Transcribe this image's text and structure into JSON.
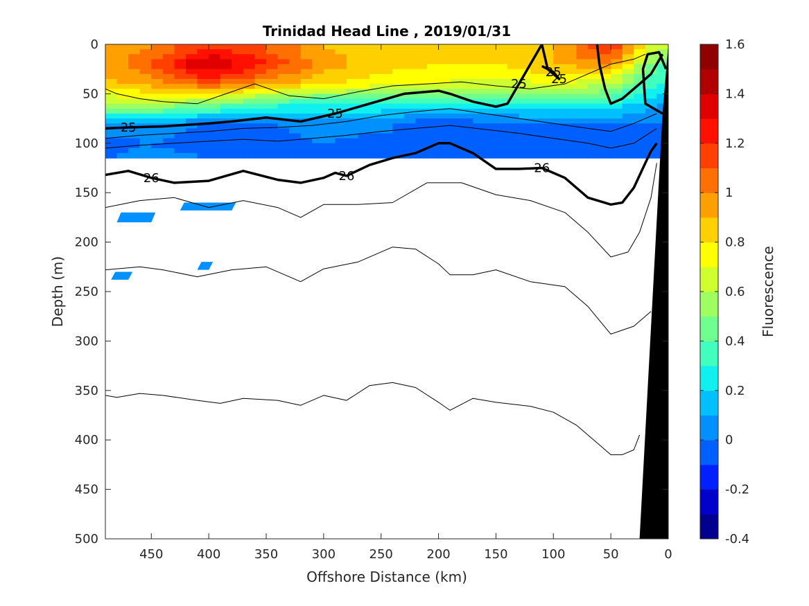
{
  "chart_data": {
    "type": "heatmap",
    "title": "Trinidad Head Line , 2019/01/31",
    "xlabel": "Offshore Distance (km)",
    "ylabel": "Depth (m)",
    "xlim": [
      490,
      0
    ],
    "ylim": [
      0,
      500
    ],
    "x_ticks": [
      "450",
      "400",
      "350",
      "300",
      "250",
      "200",
      "150",
      "100",
      "50",
      "0"
    ],
    "x_tick_values": [
      450,
      400,
      350,
      300,
      250,
      200,
      150,
      100,
      50,
      0
    ],
    "y_ticks": [
      "0",
      "50",
      "100",
      "150",
      "200",
      "250",
      "300",
      "350",
      "400",
      "450",
      "500"
    ],
    "y_tick_values": [
      0,
      50,
      100,
      150,
      200,
      250,
      300,
      350,
      400,
      450,
      500
    ],
    "colorbar": {
      "label": "Fluorescence",
      "range": [
        -0.4,
        1.6
      ],
      "ticks": [
        "1.6",
        "1.4",
        "1.2",
        "1",
        "0.8",
        "0.6",
        "0.4",
        "0.2",
        "0",
        "-0.2",
        "-0.4"
      ],
      "tick_values": [
        1.6,
        1.4,
        1.2,
        1.0,
        0.8,
        0.6,
        0.4,
        0.2,
        0.0,
        -0.2,
        -0.4
      ],
      "colors": [
        "#00008f",
        "#0000cc",
        "#0020ff",
        "#0060ff",
        "#0090ff",
        "#00c0ff",
        "#10f0ef",
        "#40ffbf",
        "#70ff8f",
        "#a0ff60",
        "#d0ff30",
        "#ffff00",
        "#ffd000",
        "#ffa000",
        "#ff7000",
        "#ff4000",
        "#ff1000",
        "#e00000",
        "#b00000",
        "#8f0000"
      ]
    },
    "fluorescence_field": {
      "distance_km": [
        490,
        450,
        400,
        350,
        300,
        250,
        200,
        150,
        100,
        50,
        10
      ],
      "depth_m": [
        5,
        20,
        40,
        60,
        80,
        100,
        115
      ],
      "values": [
        [
          0.9,
          1.0,
          1.2,
          1.1,
          0.9,
          0.85,
          0.8,
          0.85,
          0.9,
          1.2,
          0.6
        ],
        [
          0.95,
          1.1,
          1.45,
          1.2,
          0.95,
          0.85,
          0.8,
          0.8,
          0.9,
          1.0,
          0.4
        ],
        [
          0.85,
          0.95,
          1.1,
          0.95,
          0.8,
          0.75,
          0.7,
          0.65,
          0.7,
          0.6,
          0.3
        ],
        [
          0.6,
          0.6,
          0.5,
          0.35,
          0.3,
          0.3,
          0.25,
          0.25,
          0.3,
          0.3,
          0.1
        ],
        [
          0.1,
          0.1,
          0.0,
          0.0,
          0.05,
          0.05,
          -0.1,
          0.0,
          0.0,
          0.0,
          0.0
        ],
        [
          -0.05,
          0.0,
          -0.1,
          -0.05,
          0.0,
          -0.05,
          -0.1,
          -0.05,
          -0.1,
          -0.1,
          -0.05
        ],
        [
          0.0,
          0.05,
          0.0,
          0.0,
          0.0,
          0.0,
          0.0,
          0.0,
          0.0,
          -0.05,
          0.0
        ]
      ]
    },
    "deep_patches": [
      {
        "distance_km": [
          480,
          450
        ],
        "depth_m": [
          170,
          180
        ],
        "value": 0.0
      },
      {
        "distance_km": [
          425,
          380
        ],
        "depth_m": [
          160,
          168
        ],
        "value": 0.0
      },
      {
        "distance_km": [
          410,
          400
        ],
        "depth_m": [
          220,
          228
        ],
        "value": 0.0
      },
      {
        "distance_km": [
          485,
          470
        ],
        "depth_m": [
          230,
          238
        ],
        "value": 0.0
      }
    ],
    "density_contours": [
      {
        "label": "25",
        "bold": true,
        "labels_at_km": [
          470,
          290,
          130,
          100,
          55
        ],
        "x": [
          490,
          470,
          440,
          400,
          380,
          350,
          320,
          290,
          260,
          230,
          200,
          190,
          170,
          150,
          140,
          130,
          120,
          110,
          105,
          95,
          100,
          110
        ],
        "y": [
          85,
          84,
          83,
          80,
          78,
          74,
          78,
          70,
          60,
          50,
          47,
          50,
          58,
          63,
          60,
          40,
          20,
          0,
          25,
          35,
          28,
          22
        ]
      },
      {
        "label": "",
        "bold": true,
        "x": [
          62,
          60,
          55,
          50,
          40,
          30,
          20,
          15,
          10,
          5
        ],
        "y": [
          0,
          20,
          45,
          60,
          55,
          45,
          35,
          30,
          20,
          10
        ]
      },
      {
        "label": "",
        "bold": true,
        "x": [
          5,
          20,
          22,
          18,
          8,
          2
        ],
        "y": [
          70,
          60,
          25,
          10,
          8,
          25
        ]
      },
      {
        "label": "26",
        "bold": true,
        "labels_at_km": [
          455,
          275,
          105
        ],
        "x": [
          490,
          470,
          450,
          430,
          400,
          370,
          340,
          320,
          300,
          290,
          280,
          260,
          240,
          220,
          200,
          190,
          170,
          150,
          130,
          110,
          90,
          70,
          50,
          40,
          30,
          20,
          15,
          10
        ],
        "y": [
          132,
          128,
          135,
          140,
          138,
          128,
          137,
          140,
          135,
          130,
          133,
          122,
          115,
          110,
          100,
          100,
          110,
          126,
          126,
          125,
          135,
          155,
          162,
          160,
          145,
          120,
          108,
          100
        ]
      },
      {
        "label": "",
        "bold": false,
        "x": [
          490,
          480,
          460,
          440,
          410,
          380,
          360,
          330,
          300,
          270,
          240,
          210,
          180,
          150,
          120,
          90,
          70,
          50,
          30,
          20
        ],
        "y": [
          45,
          50,
          55,
          58,
          60,
          48,
          40,
          52,
          55,
          48,
          42,
          40,
          38,
          42,
          45,
          40,
          30,
          20,
          15,
          10
        ]
      },
      {
        "label": "",
        "bold": false,
        "x": [
          490,
          460,
          430,
          400,
          370,
          340,
          310,
          280,
          250,
          220,
          190,
          160,
          130,
          100,
          70,
          50,
          30,
          10
        ],
        "y": [
          95,
          92,
          90,
          88,
          85,
          84,
          82,
          78,
          72,
          68,
          65,
          70,
          75,
          80,
          85,
          88,
          80,
          70
        ]
      },
      {
        "label": "",
        "bold": false,
        "x": [
          490,
          460,
          430,
          400,
          370,
          340,
          310,
          280,
          250,
          220,
          190,
          160,
          130,
          100,
          70,
          50,
          30,
          10
        ],
        "y": [
          105,
          102,
          100,
          98,
          96,
          98,
          95,
          92,
          88,
          85,
          82,
          86,
          90,
          95,
          100,
          105,
          100,
          85
        ]
      },
      {
        "label": "",
        "bold": false,
        "x": [
          490,
          460,
          430,
          400,
          370,
          340,
          320,
          300,
          270,
          240,
          210,
          180,
          150,
          120,
          90,
          70,
          50,
          35,
          25,
          15,
          10
        ],
        "y": [
          165,
          158,
          155,
          165,
          158,
          165,
          175,
          162,
          162,
          160,
          140,
          140,
          152,
          158,
          170,
          190,
          215,
          210,
          190,
          155,
          120
        ]
      },
      {
        "label": "",
        "bold": false,
        "x": [
          490,
          460,
          440,
          410,
          380,
          350,
          320,
          300,
          270,
          240,
          220,
          200,
          190,
          170,
          150,
          120,
          90,
          70,
          50,
          30,
          15
        ],
        "y": [
          228,
          225,
          228,
          235,
          228,
          225,
          240,
          227,
          220,
          205,
          207,
          222,
          233,
          233,
          228,
          240,
          245,
          265,
          293,
          285,
          270
        ]
      },
      {
        "label": "",
        "bold": false,
        "x": [
          490,
          480,
          460,
          440,
          410,
          390,
          370,
          340,
          320,
          300,
          280,
          260,
          240,
          220,
          200,
          190,
          170,
          150,
          120,
          100,
          80,
          60,
          50,
          40,
          30,
          25
        ],
        "y": [
          355,
          357,
          353,
          355,
          360,
          363,
          358,
          360,
          365,
          355,
          360,
          345,
          342,
          347,
          362,
          370,
          358,
          362,
          366,
          372,
          385,
          405,
          415,
          415,
          410,
          395
        ]
      }
    ],
    "bathymetry": {
      "x": [
        0,
        0,
        25,
        5
      ],
      "y": [
        0,
        500,
        500,
        70
      ]
    }
  }
}
